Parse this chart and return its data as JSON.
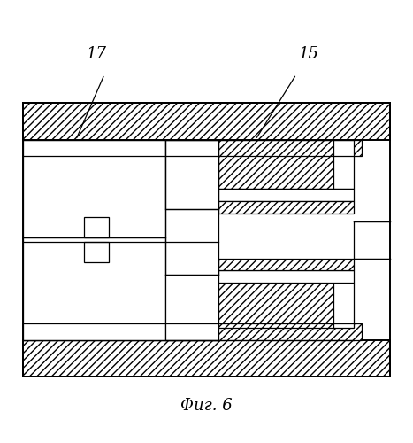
{
  "title": "Фиг. 6",
  "label_17": "17",
  "label_15": "15",
  "bg_color": "#ffffff",
  "line_color": "#000000",
  "fig_width": 4.67,
  "fig_height": 5.0,
  "dpi": 100
}
